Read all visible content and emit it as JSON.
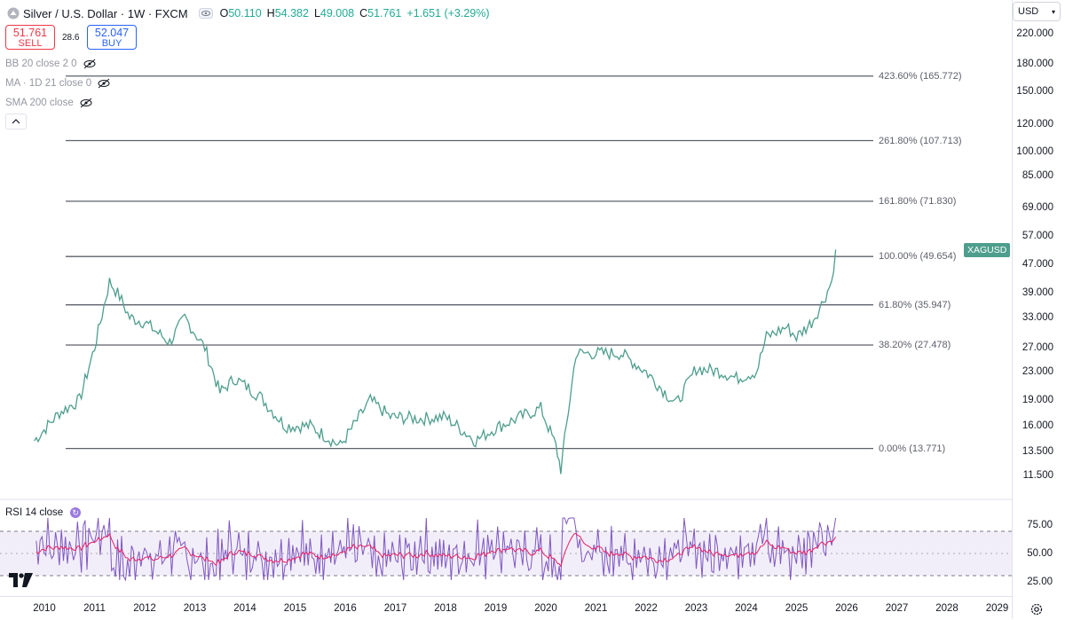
{
  "header": {
    "title": "Silver / U.S. Dollar · 1W · FXCM",
    "ohlc": [
      {
        "k": "O",
        "v": "50.110"
      },
      {
        "k": "H",
        "v": "54.382"
      },
      {
        "k": "L",
        "v": "49.008"
      },
      {
        "k": "C",
        "v": "51.761"
      }
    ],
    "change": "+1.651 (+3.29%)"
  },
  "trade": {
    "sell_price": "51.761",
    "sell_label": "SELL",
    "spread": "28.6",
    "buy_price": "52.047",
    "buy_label": "BUY"
  },
  "indicators": [
    "BB 20 close 2 0",
    "MA · 1D 21 close 0",
    "SMA 200 close"
  ],
  "currency": "USD",
  "price_labels": [
    "220.000",
    "180.000",
    "150.000",
    "120.000",
    "100.000",
    "85.000",
    "69.000",
    "57.000",
    "47.000",
    "39.000",
    "33.000",
    "27.000",
    "23.000",
    "19.000",
    "16.000",
    "13.500",
    "11.500"
  ],
  "symbol_tag": "XAGUSD",
  "fib_levels": [
    {
      "label": "423.60% (165.772)",
      "price": 165.772
    },
    {
      "label": "261.80% (107.713)",
      "price": 107.713
    },
    {
      "label": "161.80% (71.830)",
      "price": 71.83
    },
    {
      "label": "100.00% (49.654)",
      "price": 49.654
    },
    {
      "label": "61.80% (35.947)",
      "price": 35.947
    },
    {
      "label": "38.20% (27.478)",
      "price": 27.478
    },
    {
      "label": "0.00% (13.771)",
      "price": 13.771
    }
  ],
  "rsi": {
    "title": "RSI 14 close",
    "labels": [
      "75.00",
      "50.00",
      "25.00"
    ]
  },
  "years": [
    "2010",
    "2011",
    "2012",
    "2013",
    "2014",
    "2015",
    "2016",
    "2017",
    "2018",
    "2019",
    "2020",
    "2021",
    "2022",
    "2023",
    "2024",
    "2025",
    "2026",
    "2027",
    "2028",
    "2029"
  ],
  "colors": {
    "candle": "#4e9e8d",
    "rsi": "#7e57c2",
    "rsi_ma": "#e91e63",
    "fib": "#5d606b"
  },
  "chart_data": {
    "type": "line",
    "title": "Silver / U.S. Dollar · 1W · FXCM",
    "y_scale": "log",
    "ylim": [
      10.5,
      240
    ],
    "series": [
      {
        "name": "XAGUSD",
        "x": [
          2009.8,
          2010.3,
          2010.7,
          2011.0,
          2011.3,
          2011.5,
          2011.7,
          2012.0,
          2012.5,
          2012.8,
          2013.2,
          2013.5,
          2013.8,
          2014.3,
          2014.8,
          2015.3,
          2015.9,
          2016.5,
          2016.9,
          2017.5,
          2018.0,
          2018.6,
          2019.0,
          2019.5,
          2019.9,
          2020.2,
          2020.3,
          2020.6,
          2021.0,
          2021.5,
          2022.0,
          2022.6,
          2023.0,
          2023.5,
          2023.8,
          2024.2,
          2024.4,
          2024.8,
          2025.0,
          2025.3,
          2025.5,
          2025.7,
          2025.78
        ],
        "values": [
          14.5,
          17.5,
          19,
          27,
          42,
          38,
          33,
          32,
          28,
          33,
          27,
          20,
          22,
          19.5,
          16,
          16,
          14,
          19,
          17,
          16.8,
          17,
          14.5,
          15.8,
          17,
          18,
          14,
          12,
          26,
          26,
          26,
          23,
          18.5,
          23.5,
          23,
          22,
          23,
          29,
          31,
          29,
          32,
          36,
          42,
          52
        ]
      }
    ]
  }
}
